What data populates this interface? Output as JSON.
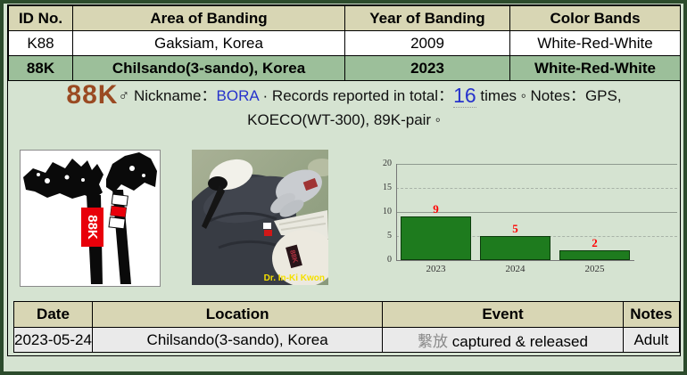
{
  "page": {
    "bg_color": "#d5e3d1",
    "border_color": "#2c4b2c",
    "header_bg": "#d8d6b4",
    "highlight_row_bg": "#9cbf9a",
    "accent_brown": "#9a4a22",
    "accent_blue": "#2632cc",
    "band_red": "#e8000a"
  },
  "banding_table": {
    "headers": [
      "ID No.",
      "Area of Banding",
      "Year of Banding",
      "Color Bands"
    ],
    "rows": [
      {
        "id": "K88",
        "area": "Gaksiam, Korea",
        "year": "2009",
        "bands": "White-Red-White"
      },
      {
        "id": "88K",
        "area": "Chilsando(3-sando), Korea",
        "year": "2023",
        "bands": "White-Red-White"
      }
    ]
  },
  "profile": {
    "id": "88K",
    "sex_symbol": "♂",
    "nickname_label": "Nickname：",
    "nickname": "BORA",
    "sep1": "·",
    "records_label": "Records reported in total：",
    "records_count": "16",
    "records_unit": "times",
    "sep2": "◦",
    "notes_label": "Notes：",
    "notes_text": "GPS, KOECO(WT-300), 89K-pair ◦"
  },
  "band_diagram": {
    "left_band_text": "88K",
    "left_band_color": "#e8000a",
    "right_band_pattern": [
      "White",
      "Red",
      "White"
    ]
  },
  "photo": {
    "credit": "Dr. In-Ki Kwon",
    "band_text": "88K"
  },
  "chart_data": {
    "type": "bar",
    "title": "",
    "xlabel": "",
    "ylabel": "",
    "categories": [
      "2023",
      "2024",
      "2025"
    ],
    "values": [
      9,
      5,
      2
    ],
    "ylim": [
      0,
      20
    ],
    "yticks": [
      0,
      5,
      10,
      15,
      20
    ],
    "grid": "horizontal; solid at 10 and 20, dashed at 5 and 15",
    "legend": "none",
    "bar_color": "#1e7b1e",
    "value_label_color": "#ff0000"
  },
  "sightings_table": {
    "headers": [
      "Date",
      "Location",
      "Event",
      "Notes"
    ],
    "rows": [
      {
        "date": "2023-05-24",
        "location": "Chilsando(3-sando), Korea",
        "event_cjk": "繫放",
        "event_en": "captured & released",
        "notes": "Adult"
      }
    ]
  }
}
